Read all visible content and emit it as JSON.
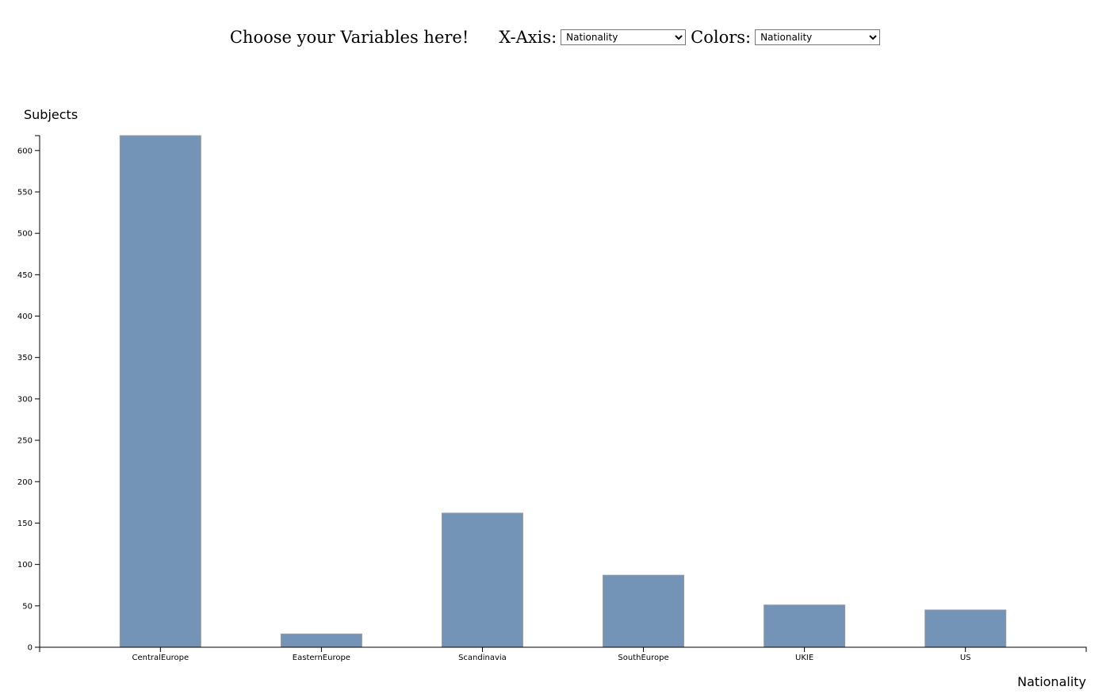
{
  "controls": {
    "heading": "Choose your Variables here!",
    "x_axis_label": "X-Axis:",
    "x_axis_selected": "Nationality",
    "colors_label": "Colors:",
    "colors_selected": "Nationality"
  },
  "chart_data": {
    "type": "bar",
    "categories": [
      "CentralEurope",
      "EasternEurope",
      "Scandinavia",
      "SouthEurope",
      "UKIE",
      "US"
    ],
    "values": [
      618,
      16,
      162,
      87,
      51,
      45
    ],
    "xlabel": "Nationality",
    "ylabel": "Subjects",
    "ylim": [
      0,
      618
    ],
    "yticks": [
      0,
      50,
      100,
      150,
      200,
      250,
      300,
      350,
      400,
      450,
      500,
      550,
      600
    ],
    "grid": false,
    "bar_color": "#7393b7",
    "bar_stroke": "#999999"
  }
}
